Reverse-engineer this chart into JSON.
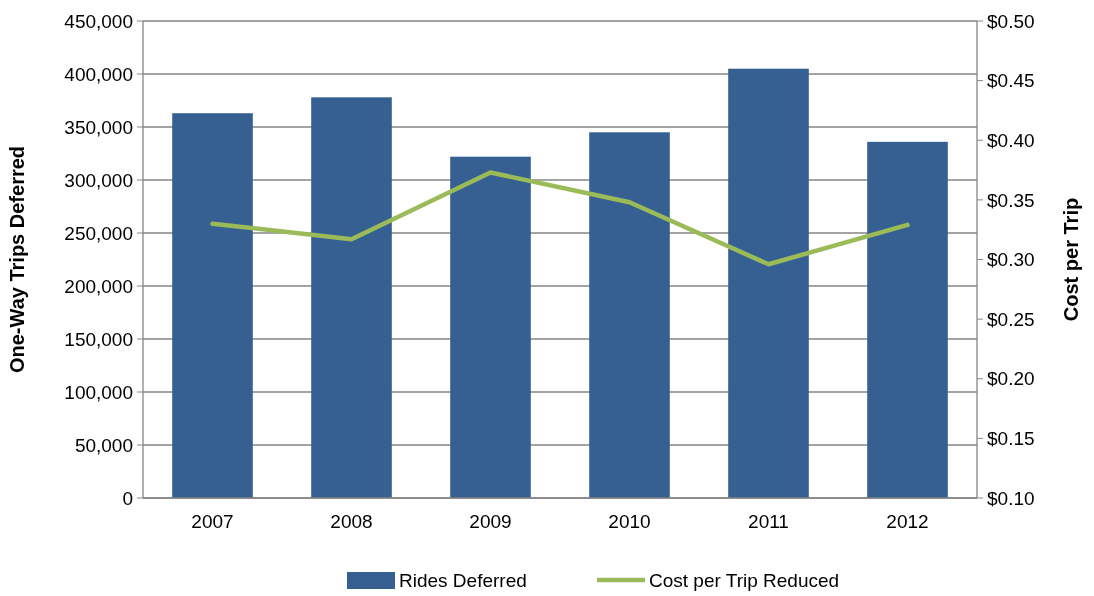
{
  "chart_data": {
    "type": "bar",
    "ylabel": "One-Way Trips Deferred",
    "y2label": "Cost per Trip",
    "categories": [
      "2007",
      "2008",
      "2009",
      "2010",
      "2011",
      "2012"
    ],
    "series": [
      {
        "name": "Rides Deferred",
        "color": "#366092",
        "values": [
          363000,
          378000,
          322000,
          345000,
          405000,
          336000
        ]
      },
      {
        "name": "Cost per Trip Reduced",
        "type": "line",
        "axis": "y2",
        "color": "#9bbb59",
        "values": [
          0.33,
          0.317,
          0.373,
          0.348,
          0.296,
          0.329
        ]
      }
    ],
    "ylim": [
      0,
      450000
    ],
    "yticks": [
      {
        "value": 0,
        "label": "0"
      },
      {
        "value": 50000,
        "label": "50,000"
      },
      {
        "value": 100000,
        "label": "100,000"
      },
      {
        "value": 150000,
        "label": "150,000"
      },
      {
        "value": 200000,
        "label": "200,000"
      },
      {
        "value": 250000,
        "label": "250,000"
      },
      {
        "value": 300000,
        "label": "300,000"
      },
      {
        "value": 350000,
        "label": "350,000"
      },
      {
        "value": 400000,
        "label": "400,000"
      },
      {
        "value": 450000,
        "label": "450,000"
      }
    ],
    "y2lim": [
      0.1,
      0.5
    ],
    "y2ticks": [
      {
        "value": 0.1,
        "label": "$0.10"
      },
      {
        "value": 0.15,
        "label": "$0.15"
      },
      {
        "value": 0.2,
        "label": "$0.20"
      },
      {
        "value": 0.25,
        "label": "$0.25"
      },
      {
        "value": 0.3,
        "label": "$0.30"
      },
      {
        "value": 0.35,
        "label": "$0.35"
      },
      {
        "value": 0.4,
        "label": "$0.40"
      },
      {
        "value": 0.45,
        "label": "$0.45"
      },
      {
        "value": 0.5,
        "label": "$0.50"
      }
    ],
    "grid": "y",
    "legend": "bottom"
  }
}
